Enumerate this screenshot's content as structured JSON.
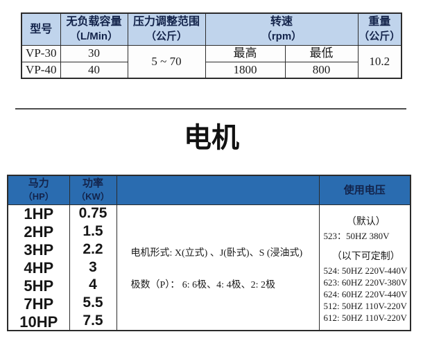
{
  "pump_table": {
    "headers": {
      "model": "型号",
      "capacity": [
        "无负载容量",
        "（L/Min）"
      ],
      "pressure": [
        "压力调整范围",
        "（公斤）"
      ],
      "speed": [
        "转速",
        "（rpm）"
      ],
      "weight": [
        "重量",
        "（公斤）"
      ]
    },
    "speed_sub": {
      "max": "最高",
      "min": "最低"
    },
    "rows": [
      {
        "model": "VP-30",
        "capacity": "30"
      },
      {
        "model": "VP-40",
        "capacity": "40"
      }
    ],
    "pressure_range": "5 ~ 70",
    "speed_max": "1800",
    "speed_min": "800",
    "weight": "10.2"
  },
  "section": {
    "title": "电机"
  },
  "motor_table": {
    "headers": {
      "hp": [
        "马力",
        "（HP）"
      ],
      "kw": [
        "功率",
        "（KW）"
      ],
      "voltage": "使用电压"
    },
    "rows": [
      {
        "hp": "1HP",
        "kw": "0.75"
      },
      {
        "hp": "2HP",
        "kw": "1.5"
      },
      {
        "hp": "3HP",
        "kw": "2.2"
      },
      {
        "hp": "4HP",
        "kw": "3"
      },
      {
        "hp": "5HP",
        "kw": "4"
      },
      {
        "hp": "7HP",
        "kw": "5.5"
      },
      {
        "hp": "10HP",
        "kw": "7.5"
      }
    ],
    "motor_info": {
      "line1": "电机形式: X(立式) 、J(卧式)、S (浸油式)",
      "line2": "极数（P）：  6: 6极、4: 4极、2: 2极"
    },
    "voltage_info": {
      "default_label": "（默认）",
      "default_value": "523：50HZ 380V",
      "custom_label": "（以下可定制）",
      "custom_options": [
        "524: 50HZ 220V-440V",
        "623: 60HZ 220V-380V",
        "624: 60HZ 220V-440V",
        "512: 50HZ 110V-220V",
        "612: 50HZ 110V-220V"
      ]
    }
  },
  "colors": {
    "pump_header_bg": "#c0d4ec",
    "motor_header_bg": "#2a6cb0",
    "header_text_dark": "#13234a",
    "border": "#2b2b2b",
    "divider": "#4d4d4d"
  }
}
